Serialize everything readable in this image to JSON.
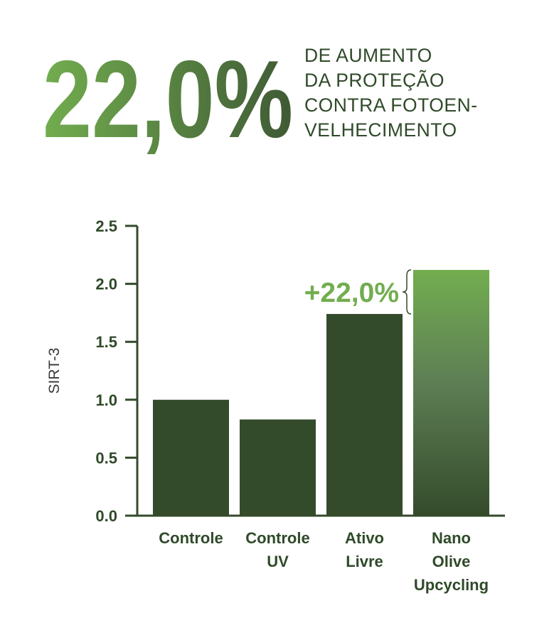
{
  "headline": {
    "big_value": "22,0%",
    "lines": [
      "DE AUMENTO",
      "DA PROTEÇÃO",
      "CONTRA FOTOEN-",
      "VELHECIMENTO"
    ]
  },
  "chart_data": {
    "type": "bar",
    "categories": [
      [
        "Controle"
      ],
      [
        "Controle",
        "UV"
      ],
      [
        "Ativo",
        "Livre"
      ],
      [
        "Nano",
        "Olive",
        "Upcycling"
      ]
    ],
    "values": [
      1.0,
      0.83,
      1.74,
      2.12
    ],
    "ylabel": "SIRT-3",
    "xlabel": "",
    "ylim": [
      0.0,
      2.5
    ],
    "yticks": [
      "0.0",
      "0.5",
      "1.0",
      "1.5",
      "2.0",
      "2.5"
    ],
    "annotation": "+22,0%",
    "highlight_index": 3
  },
  "colors": {
    "dark_green": "#344b2b",
    "light_green": "#72ad4f",
    "text": "#2f4a29",
    "axis_label": "#3b3b3b"
  }
}
